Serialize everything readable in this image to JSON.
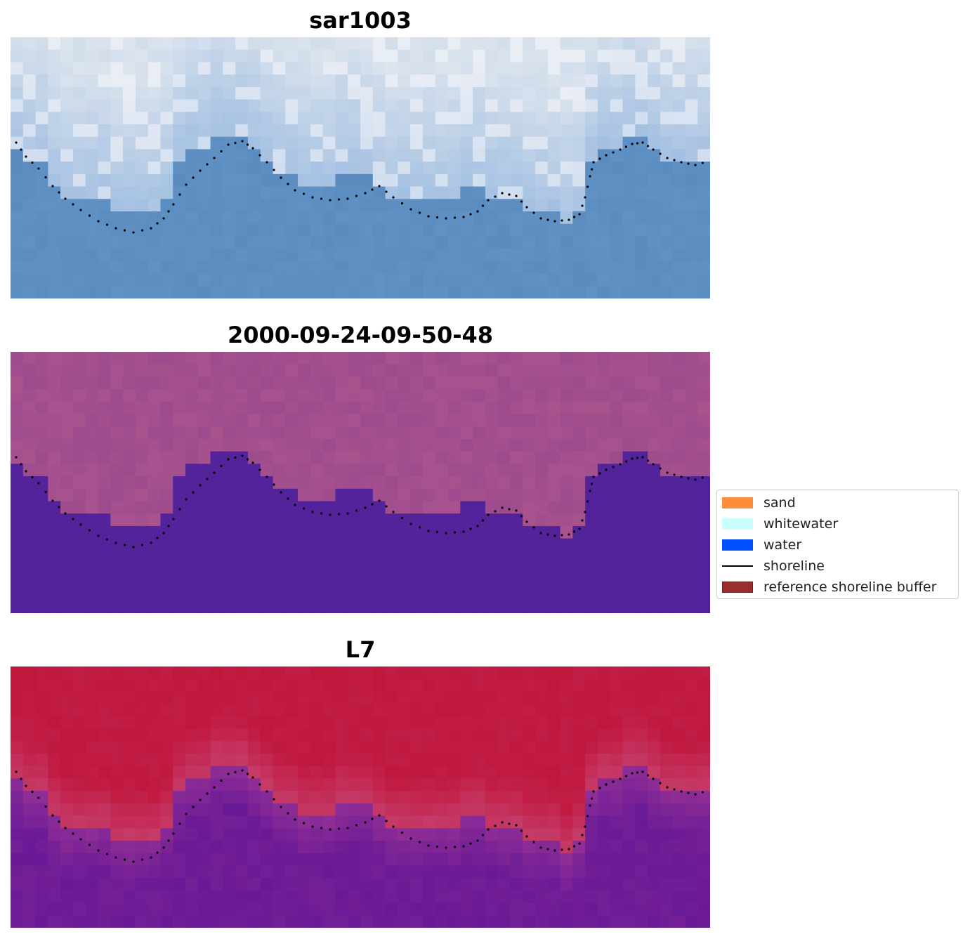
{
  "panels": [
    {
      "title": "sar1003",
      "style": "rgb"
    },
    {
      "title": "2000-09-24-09-50-48",
      "style": "classified"
    },
    {
      "title": "L7",
      "style": "index"
    }
  ],
  "legend": {
    "items": [
      {
        "label": "sand",
        "kind": "patch",
        "color": "#ff8c3c"
      },
      {
        "label": "whitewater",
        "kind": "patch",
        "color": "#c8ffff"
      },
      {
        "label": "water",
        "kind": "patch",
        "color": "#0050ff"
      },
      {
        "label": "shoreline",
        "kind": "line",
        "color": "#000000"
      },
      {
        "label": "reference shoreline buffer",
        "kind": "patch",
        "color": "#9b2d2d"
      }
    ]
  },
  "colors": {
    "water_class": "#52239a",
    "land_class": "#a8538e",
    "index_land": "#c0173d",
    "index_water": "#6a1a96",
    "rgb_land": "#dfe6ee",
    "rgb_water": "#5a8cc0"
  }
}
